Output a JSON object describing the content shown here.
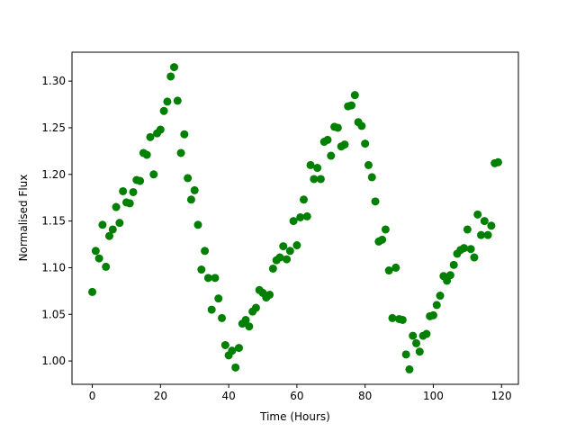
{
  "chart_data": {
    "type": "scatter",
    "x_label": "Time (Hours)",
    "y_label": "Normalised Flux",
    "color": "#008000",
    "x": [
      0,
      1,
      2,
      3,
      4,
      5,
      6,
      7,
      8,
      9,
      10,
      11,
      12,
      13,
      14,
      15,
      16,
      17,
      18,
      19,
      20,
      21,
      22,
      23,
      24,
      25,
      26,
      27,
      28,
      29,
      30,
      31,
      32,
      33,
      34,
      35,
      36,
      37,
      38,
      39,
      40,
      41,
      42,
      43,
      44,
      45,
      46,
      47,
      48,
      49,
      50,
      51,
      52,
      53,
      54,
      55,
      56,
      57,
      58,
      59,
      60,
      61,
      62,
      63,
      64,
      65,
      66,
      67,
      68,
      69,
      70,
      71,
      72,
      73,
      74,
      75,
      76,
      77,
      78,
      79,
      80,
      81,
      82,
      83,
      84,
      85,
      86,
      87,
      88,
      89,
      90,
      91,
      92,
      93,
      94,
      95,
      96,
      97,
      98,
      99,
      100,
      101,
      102,
      103,
      104,
      105,
      106,
      107,
      108,
      109,
      110,
      111,
      112,
      113,
      114,
      115,
      116,
      117,
      118,
      119
    ],
    "values": [
      1.074,
      1.118,
      1.11,
      1.146,
      1.101,
      1.134,
      1.141,
      1.165,
      1.148,
      1.182,
      1.17,
      1.169,
      1.181,
      1.194,
      1.193,
      1.223,
      1.221,
      1.24,
      1.2,
      1.244,
      1.248,
      1.268,
      1.278,
      1.305,
      1.315,
      1.279,
      1.223,
      1.243,
      1.196,
      1.173,
      1.183,
      1.146,
      1.098,
      1.118,
      1.089,
      1.055,
      1.089,
      1.067,
      1.046,
      1.017,
      1.006,
      1.011,
      0.993,
      1.014,
      1.04,
      1.044,
      1.037,
      1.053,
      1.057,
      1.076,
      1.073,
      1.068,
      1.071,
      1.099,
      1.108,
      1.111,
      1.123,
      1.109,
      1.118,
      1.15,
      1.124,
      1.154,
      1.173,
      1.155,
      1.21,
      1.195,
      1.207,
      1.195,
      1.235,
      1.237,
      1.22,
      1.251,
      1.25,
      1.23,
      1.232,
      1.273,
      1.274,
      1.285,
      1.256,
      1.252,
      1.233,
      1.21,
      1.197,
      1.171,
      1.128,
      1.13,
      1.141,
      1.097,
      1.046,
      1.1,
      1.045,
      1.044,
      1.007,
      0.991,
      1.027,
      1.019,
      1.01,
      1.027,
      1.029,
      1.048,
      1.049,
      1.06,
      1.07,
      1.091,
      1.086,
      1.092,
      1.103,
      1.115,
      1.119,
      1.121,
      1.141,
      1.12,
      1.111,
      1.157,
      1.135,
      1.15,
      1.135,
      1.145,
      1.212,
      1.213
    ],
    "xlim": [
      -5.95,
      124.95
    ],
    "xticks": [
      0,
      20,
      40,
      60,
      80,
      100,
      120
    ],
    "ylim": [
      0.975,
      1.331
    ],
    "yticks": [
      {
        "value": 1.0,
        "label": "1.00"
      },
      {
        "value": 1.05,
        "label": "1.05"
      },
      {
        "value": 1.1,
        "label": "1.10"
      },
      {
        "value": 1.15,
        "label": "1.15"
      },
      {
        "value": 1.2,
        "label": "1.20"
      },
      {
        "value": 1.25,
        "label": "1.25"
      },
      {
        "value": 1.3,
        "label": "1.30"
      }
    ]
  }
}
